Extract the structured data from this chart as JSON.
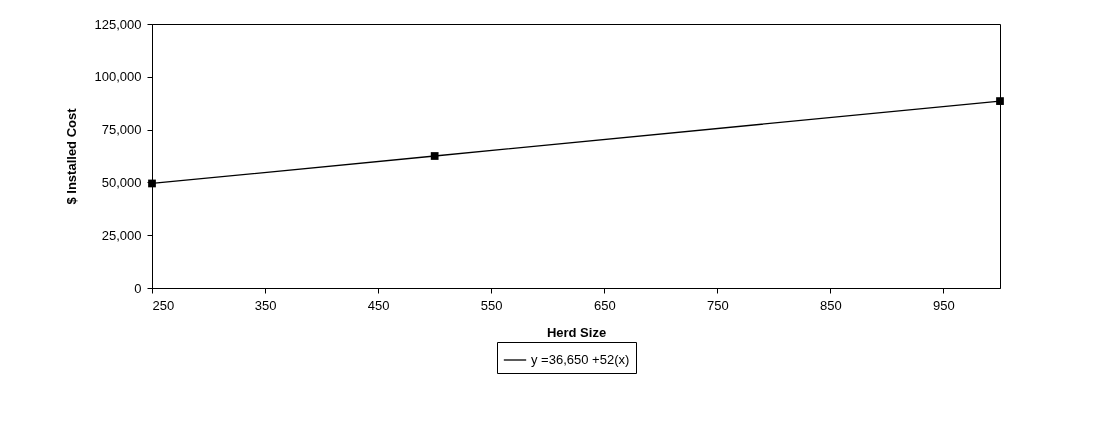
{
  "chart_data": {
    "type": "line",
    "xlabel": "Herd Size",
    "ylabel": "$ Installed Cost",
    "x": [
      250,
      500,
      1000
    ],
    "series": [
      {
        "name": "y =36,650 +52(x)",
        "color": "#000000",
        "values": [
          49500,
          62500,
          88500
        ]
      }
    ],
    "xlim": [
      250,
      1000
    ],
    "xticks": [
      250,
      350,
      450,
      550,
      650,
      750,
      850,
      950
    ],
    "ylim": [
      0,
      125000
    ],
    "yticks": [
      0,
      {
        "value": 25000,
        "label": "25,000"
      },
      {
        "value": 50000,
        "label": "50,000"
      },
      {
        "value": 75000,
        "label": "75,000"
      },
      {
        "value": 100000,
        "label": "100,000"
      },
      {
        "value": 125000,
        "label": "125,000"
      }
    ],
    "marker": "square",
    "line_style": "solid",
    "grid": false,
    "legend": "bottom"
  }
}
